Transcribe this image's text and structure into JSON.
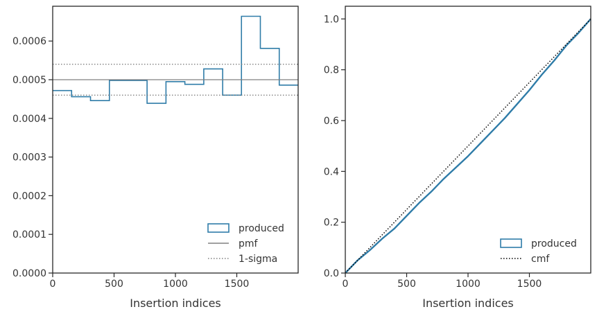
{
  "chart_data": [
    {
      "type": "step",
      "xlabel": "Insertion indices",
      "ylabel": "",
      "xlim": [
        0,
        2000
      ],
      "ylim": [
        0,
        0.00069
      ],
      "xticks": [
        0,
        500,
        1000,
        1500
      ],
      "xtick_labels": [
        "0",
        "500",
        "1000",
        "1500"
      ],
      "yticks": [
        0,
        0.0001,
        0.0002,
        0.0003,
        0.0004,
        0.0005,
        0.0006
      ],
      "ytick_labels": [
        "0.0000",
        "0.0001",
        "0.0002",
        "0.0003",
        "0.0004",
        "0.0005",
        "0.0006"
      ],
      "grid": false,
      "legend_position": "lower-right",
      "series": [
        {
          "name": "produced",
          "style": "step-outline",
          "color": "#2f7ca8",
          "bin_edges": [
            0,
            154,
            308,
            462,
            615,
            769,
            923,
            1077,
            1231,
            1385,
            1538,
            1692,
            1846,
            2000
          ],
          "values": [
            0.000472,
            0.000456,
            0.000446,
            0.000498,
            0.000498,
            0.000439,
            0.000495,
            0.000488,
            0.000528,
            0.00046,
            0.000664,
            0.000581,
            0.000486
          ]
        },
        {
          "name": "pmf",
          "style": "hline-solid",
          "color": "#808080",
          "y": 0.0005
        },
        {
          "name": "1-sigma",
          "style": "hline-dotted",
          "color": "#808080",
          "y": [
            0.00046,
            0.00054
          ]
        }
      ]
    },
    {
      "type": "line",
      "xlabel": "Insertion indices",
      "ylabel": "",
      "xlim": [
        0,
        2000
      ],
      "ylim": [
        0,
        1.05
      ],
      "xticks": [
        0,
        500,
        1000,
        1500
      ],
      "xtick_labels": [
        "0",
        "500",
        "1000",
        "1500"
      ],
      "yticks": [
        0,
        0.2,
        0.4,
        0.6,
        0.8,
        1.0
      ],
      "ytick_labels": [
        "0.0",
        "0.2",
        "0.4",
        "0.6",
        "0.8",
        "1.0"
      ],
      "grid": false,
      "legend_position": "lower-right",
      "series": [
        {
          "name": "produced",
          "style": "thick-line",
          "color": "#2f7ca8",
          "x": [
            0,
            100,
            200,
            300,
            400,
            500,
            600,
            700,
            800,
            900,
            1000,
            1100,
            1200,
            1300,
            1400,
            1500,
            1600,
            1700,
            1800,
            1900,
            2000
          ],
          "y": [
            0,
            0.05,
            0.09,
            0.135,
            0.175,
            0.225,
            0.275,
            0.32,
            0.37,
            0.415,
            0.46,
            0.51,
            0.56,
            0.61,
            0.665,
            0.72,
            0.78,
            0.835,
            0.895,
            0.945,
            1.0
          ]
        },
        {
          "name": "cmf",
          "style": "dotted",
          "color": "#000000",
          "x": [
            0,
            2000
          ],
          "y": [
            0,
            1.0
          ]
        }
      ]
    }
  ]
}
